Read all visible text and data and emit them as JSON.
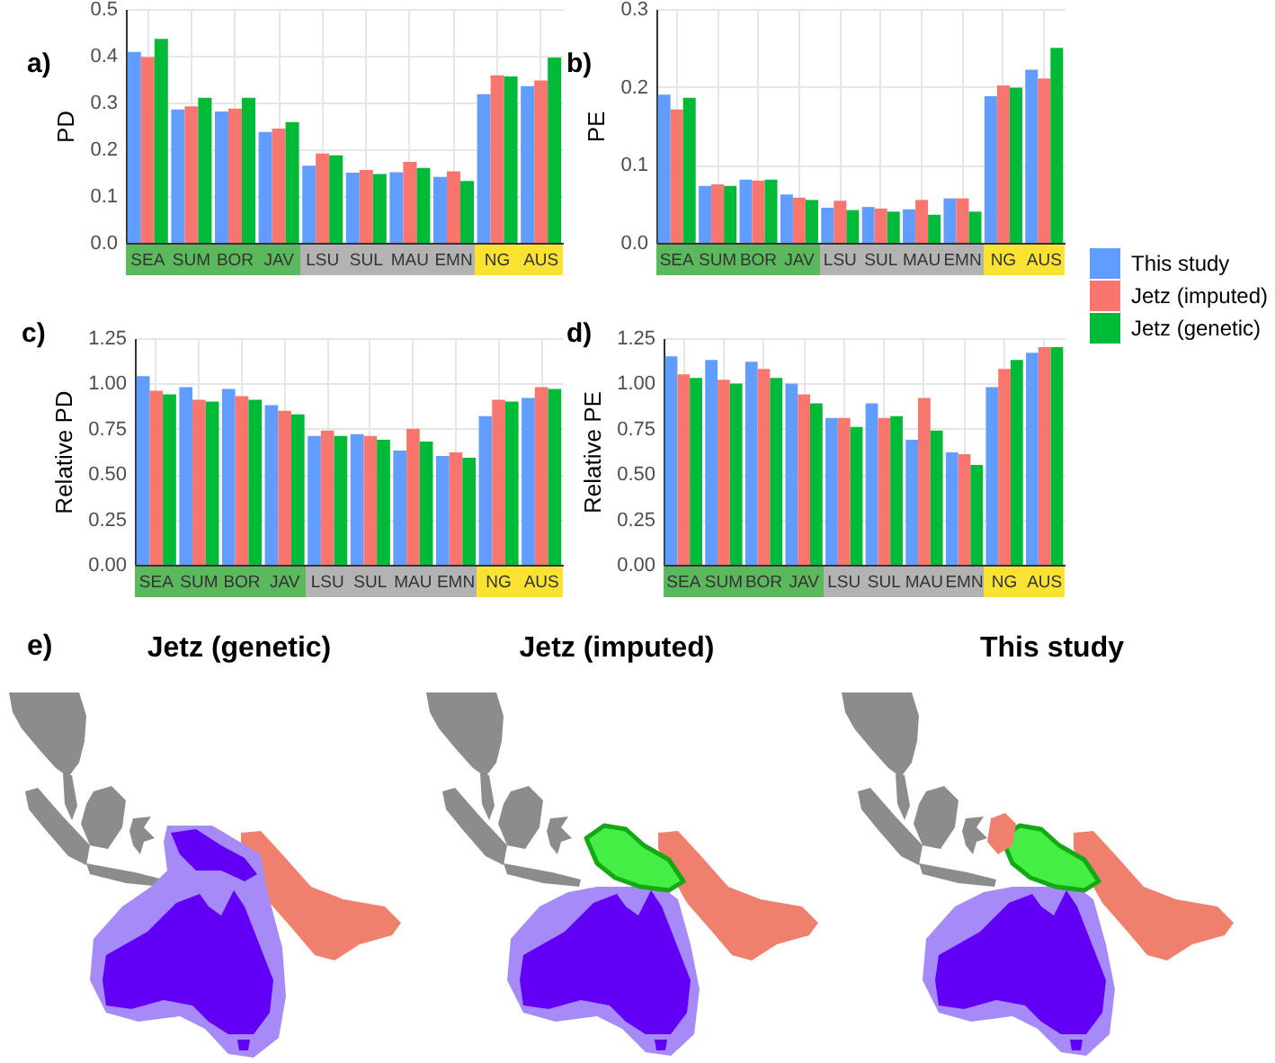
{
  "chart_data": [
    {
      "type": "bar",
      "title": "a)",
      "ylabel": "PD",
      "categories": [
        "SEA",
        "SUM",
        "BOR",
        "JAV",
        "LSU",
        "SUL",
        "MAU",
        "EMN",
        "NG",
        "AUS"
      ],
      "series": [
        {
          "color": "#619cff",
          "values": [
            0.408,
            0.285,
            0.281,
            0.237,
            0.165,
            0.15,
            0.151,
            0.141,
            0.318,
            0.335
          ]
        },
        {
          "color": "#f8766d",
          "values": [
            0.397,
            0.292,
            0.287,
            0.244,
            0.191,
            0.156,
            0.173,
            0.153,
            0.358,
            0.347
          ]
        },
        {
          "color": "#00ba38",
          "values": [
            0.436,
            0.31,
            0.31,
            0.258,
            0.187,
            0.147,
            0.16,
            0.132,
            0.356,
            0.396
          ]
        }
      ],
      "ylim": [
        0,
        0.5
      ],
      "yticks": [
        {
          "value": 0,
          "label": "0.0"
        },
        0.1,
        0.2,
        0.3,
        0.4,
        0.5
      ],
      "grid": true
    },
    {
      "type": "bar",
      "title": "b)",
      "ylabel": "PE",
      "categories": [
        "SEA",
        "SUM",
        "BOR",
        "JAV",
        "LSU",
        "SUL",
        "MAU",
        "EMN",
        "NG",
        "AUS"
      ],
      "series": [
        {
          "name": "This study",
          "color": "#619cff",
          "values": [
            0.19,
            0.073,
            0.081,
            0.062,
            0.045,
            0.046,
            0.043,
            0.057,
            0.188,
            0.222
          ]
        },
        {
          "name": "Jetz (imputed)",
          "color": "#f8766d",
          "values": [
            0.171,
            0.075,
            0.08,
            0.058,
            0.054,
            0.044,
            0.055,
            0.057,
            0.202,
            0.211
          ]
        },
        {
          "name": "Jetz (genetic)",
          "color": "#00ba38",
          "values": [
            0.186,
            0.073,
            0.081,
            0.055,
            0.042,
            0.04,
            0.036,
            0.04,
            0.199,
            0.25
          ]
        }
      ],
      "ylim": [
        0,
        0.3
      ],
      "yticks": [
        {
          "value": 0,
          "label": "0.0"
        },
        0.1,
        0.2,
        0.3
      ],
      "grid": true,
      "legend": "bottom right"
    },
    {
      "type": "bar",
      "title": "c)",
      "ylabel": "Relative PD",
      "categories": [
        "SEA",
        "SUM",
        "BOR",
        "JAV",
        "LSU",
        "SUL",
        "MAU",
        "EMN",
        "NG",
        "AUS"
      ],
      "series": [
        {
          "color": "#619cff",
          "values": [
            1.04,
            0.98,
            0.97,
            0.88,
            0.71,
            0.72,
            0.63,
            0.6,
            0.82,
            0.92
          ]
        },
        {
          "color": "#f8766d",
          "values": [
            0.96,
            0.91,
            0.93,
            0.85,
            0.74,
            0.71,
            0.75,
            0.62,
            0.91,
            0.98
          ]
        },
        {
          "color": "#00ba38",
          "values": [
            0.94,
            0.9,
            0.91,
            0.83,
            0.71,
            0.69,
            0.68,
            0.59,
            0.9,
            0.97
          ]
        }
      ],
      "ylim": [
        0,
        1.25
      ],
      "yticks": [
        {
          "value": 0,
          "label": "0.00"
        },
        0.25,
        {
          "value": 0.5,
          "label": "0.50"
        },
        0.75,
        {
          "value": 1,
          "label": "1.00"
        },
        1.25
      ],
      "grid": true
    },
    {
      "type": "bar",
      "title": "d)",
      "ylabel": "Relative PE",
      "categories": [
        "SEA",
        "SUM",
        "BOR",
        "JAV",
        "LSU",
        "SUL",
        "MAU",
        "EMN",
        "NG",
        "AUS"
      ],
      "series": [
        {
          "color": "#619cff",
          "values": [
            1.15,
            1.13,
            1.12,
            1.0,
            0.81,
            0.89,
            0.69,
            0.62,
            0.98,
            1.17
          ]
        },
        {
          "color": "#f8766d",
          "values": [
            1.05,
            1.02,
            1.08,
            0.94,
            0.81,
            0.81,
            0.92,
            0.61,
            1.08,
            1.2
          ]
        },
        {
          "color": "#00ba38",
          "values": [
            1.03,
            1.0,
            1.03,
            0.89,
            0.76,
            0.82,
            0.74,
            0.55,
            1.13,
            1.2
          ]
        }
      ],
      "ylim": [
        0,
        1.25
      ],
      "yticks": [
        {
          "value": 0,
          "label": "0.00"
        },
        0.25,
        {
          "value": 0.5,
          "label": "0.50"
        },
        0.75,
        {
          "value": 1,
          "label": "1.00"
        },
        1.25
      ],
      "grid": true
    },
    {
      "type": "other",
      "title": "e)",
      "annotations": [
        "Jetz (genetic)",
        "Jetz (imputed)",
        "This study"
      ]
    }
  ]
}
